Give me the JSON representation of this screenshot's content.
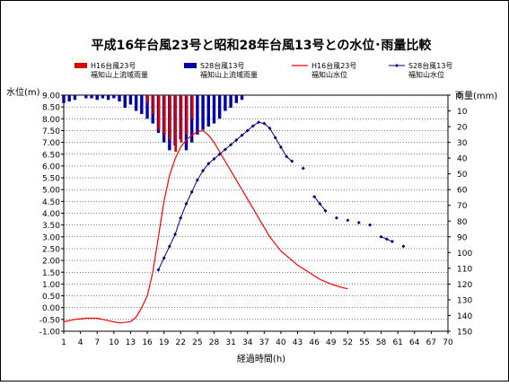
{
  "chart_data": {
    "type": "combo",
    "title": "平成16年台風23号と昭和28年台風13号との水位･雨量比較",
    "xlabel": "経過時間(h)",
    "ylabel_left": "水位(m)",
    "ylabel_right": "雨量(mm)",
    "x_range": [
      1,
      70
    ],
    "x_ticks": [
      1,
      4,
      7,
      10,
      13,
      16,
      19,
      22,
      25,
      28,
      31,
      34,
      37,
      40,
      43,
      46,
      49,
      52,
      55,
      58,
      61,
      64,
      67,
      70
    ],
    "y_left_range": [
      -1.0,
      9.0
    ],
    "y_left_ticks": [
      "9.00",
      "8.50",
      "8.00",
      "7.50",
      "7.00",
      "6.50",
      "6.00",
      "5.50",
      "5.00",
      "4.50",
      "4.00",
      "3.50",
      "3.00",
      "2.50",
      "2.00",
      "1.50",
      "1.00",
      "0.50",
      "0.00",
      "-0.50",
      "-1.00"
    ],
    "y_right_range": [
      0,
      150
    ],
    "y_right_ticks": [
      "0",
      "10",
      "20",
      "30",
      "40",
      "50",
      "60",
      "70",
      "80",
      "90",
      "100",
      "110",
      "120",
      "130",
      "140",
      "150"
    ],
    "legend_placement": "top",
    "legend": [
      {
        "line1": "H16台風23号",
        "line2": "福知山上流域雨量",
        "color": "#dd0000",
        "kind": "bar"
      },
      {
        "line1": "S28台風13号",
        "line2": "福知山上流域雨量",
        "color": "#0000aa",
        "kind": "bar"
      },
      {
        "line1": "H16台風23号",
        "line2": "福知山水位",
        "color": "#ff0000",
        "kind": "line"
      },
      {
        "line1": "S28台風13号",
        "line2": "福知山水位",
        "color": "#000080",
        "kind": "line-marker"
      }
    ],
    "series": [
      {
        "name": "H16台風23号 福知山上流域雨量",
        "kind": "bar",
        "axis": "right",
        "color": "#dd0000",
        "x": [
          16,
          17,
          18,
          19,
          20,
          21,
          22,
          23,
          24
        ],
        "values": [
          5,
          12,
          22,
          25,
          28,
          36,
          30,
          25,
          15
        ]
      },
      {
        "name": "S28台風13号 福知山上流域雨量",
        "kind": "bar",
        "axis": "right",
        "color": "#0000aa",
        "x": [
          1,
          2,
          3,
          5,
          6,
          7,
          8,
          9,
          10,
          11,
          12,
          13,
          14,
          15,
          16,
          17,
          18,
          19,
          20,
          21,
          22,
          23,
          24,
          25,
          26,
          27,
          28,
          29,
          30,
          31,
          32,
          33
        ],
        "values": [
          5,
          4,
          3,
          2,
          2,
          3,
          2,
          3,
          2,
          4,
          8,
          6,
          10,
          12,
          15,
          18,
          24,
          30,
          35,
          32,
          28,
          35,
          30,
          25,
          22,
          20,
          18,
          15,
          10,
          8,
          5,
          3
        ]
      },
      {
        "name": "H16台風23号 福知山水位",
        "kind": "line",
        "axis": "left",
        "color": "#ff0000",
        "x": [
          1,
          3,
          5,
          7,
          9,
          11,
          13,
          14,
          15,
          16,
          17,
          18,
          19,
          20,
          21,
          22,
          23,
          24,
          25,
          26,
          27,
          28,
          29,
          30,
          31,
          32,
          33,
          34,
          35,
          36,
          37,
          38,
          39,
          40,
          41,
          42,
          43,
          44,
          45,
          46,
          47,
          48,
          49,
          50,
          51,
          52
        ],
        "values": [
          -0.6,
          -0.5,
          -0.45,
          -0.45,
          -0.55,
          -0.65,
          -0.6,
          -0.4,
          0.0,
          0.5,
          1.5,
          3.0,
          4.5,
          5.6,
          6.3,
          6.8,
          7.1,
          7.3,
          7.45,
          7.5,
          7.3,
          7.0,
          6.6,
          6.2,
          5.8,
          5.4,
          5.0,
          4.6,
          4.2,
          3.8,
          3.4,
          3.0,
          2.7,
          2.4,
          2.2,
          2.0,
          1.8,
          1.65,
          1.5,
          1.35,
          1.2,
          1.1,
          1.0,
          0.92,
          0.85,
          0.8
        ]
      },
      {
        "name": "S28台風13号 福知山水位",
        "kind": "line-marker",
        "axis": "left",
        "color": "#000080",
        "x": [
          18,
          19,
          20,
          21,
          22,
          23,
          24,
          25,
          26,
          27,
          28,
          29,
          30,
          31,
          32,
          33,
          34,
          35,
          36,
          37,
          38,
          39,
          40,
          41,
          42,
          44,
          46,
          47,
          48,
          50,
          52,
          54,
          56,
          58,
          59,
          60,
          62
        ],
        "values": [
          1.6,
          2.1,
          2.6,
          3.1,
          3.8,
          4.4,
          4.9,
          5.4,
          5.8,
          6.1,
          6.3,
          6.5,
          6.7,
          6.9,
          7.1,
          7.3,
          7.5,
          7.7,
          7.85,
          7.8,
          7.6,
          7.2,
          6.8,
          6.4,
          6.2,
          5.9,
          4.7,
          4.4,
          4.1,
          3.8,
          3.7,
          3.6,
          3.5,
          3.0,
          2.9,
          2.8,
          2.6
        ]
      }
    ]
  }
}
